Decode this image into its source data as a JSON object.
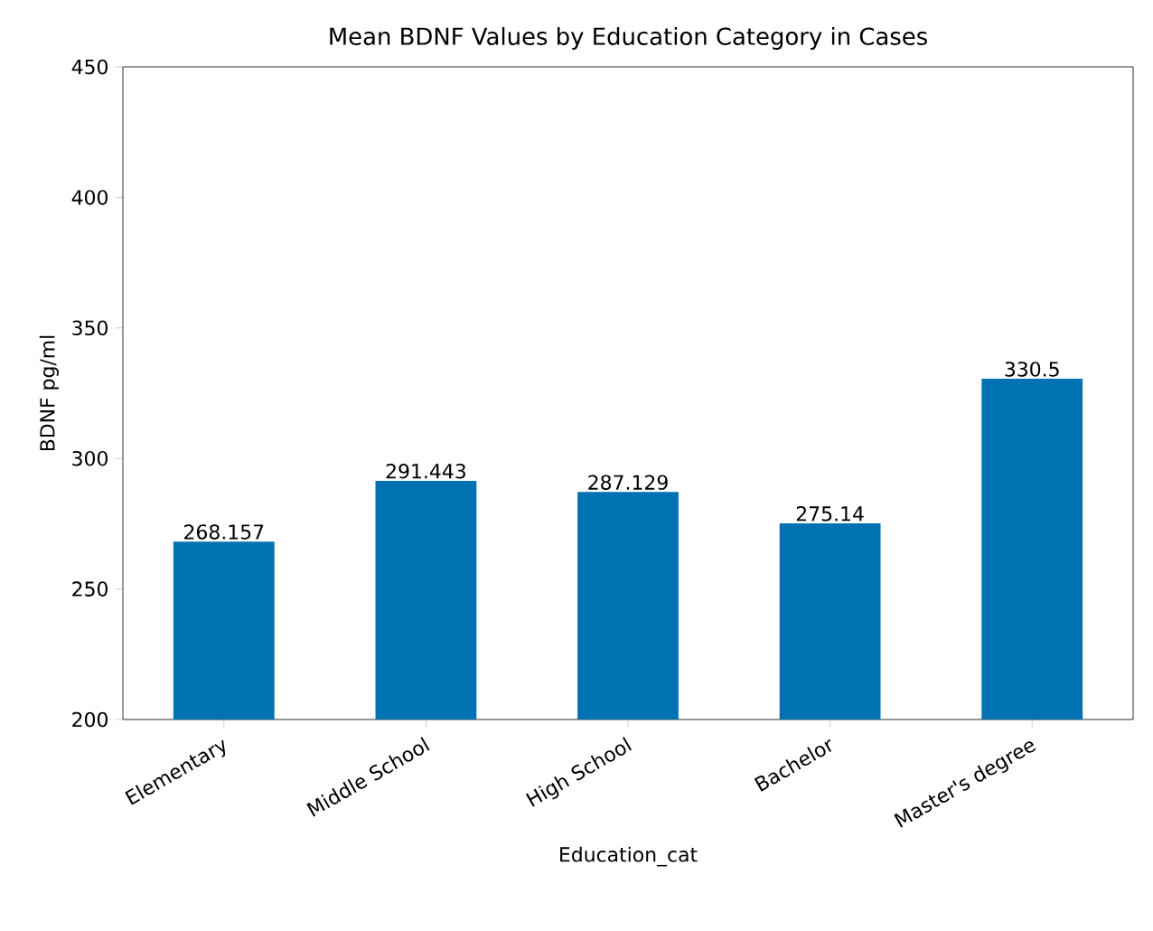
{
  "chart_data": {
    "type": "bar",
    "title": "Mean BDNF Values by Education Category in Cases",
    "xlabel": "Education_cat",
    "ylabel": "BDNF pg/ml",
    "categories": [
      "Elementary",
      "Middle School",
      "High School",
      "Bachelor",
      "Master's degree"
    ],
    "values": [
      268.157,
      291.443,
      287.129,
      275.14,
      330.5
    ],
    "color": "#0072b2",
    "ylim": [
      200,
      450
    ],
    "yticks": [
      200,
      250,
      300,
      350,
      400,
      450
    ],
    "data_labels": true
  }
}
